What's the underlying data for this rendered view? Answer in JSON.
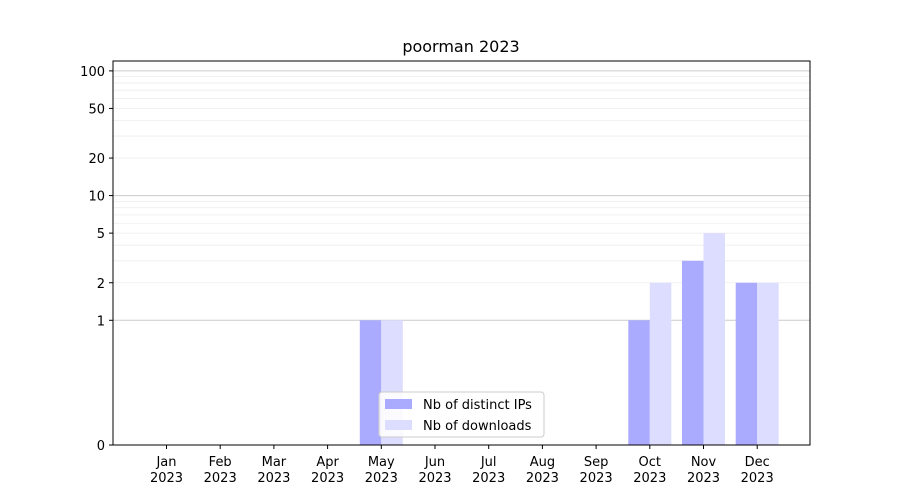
{
  "chart_data": {
    "type": "bar",
    "title": "poorman 2023",
    "xlabel": "",
    "ylabel": "",
    "categories": [
      [
        "Jan",
        "2023"
      ],
      [
        "Feb",
        "2023"
      ],
      [
        "Mar",
        "2023"
      ],
      [
        "Apr",
        "2023"
      ],
      [
        "May",
        "2023"
      ],
      [
        "Jun",
        "2023"
      ],
      [
        "Jul",
        "2023"
      ],
      [
        "Aug",
        "2023"
      ],
      [
        "Sep",
        "2023"
      ],
      [
        "Oct",
        "2023"
      ],
      [
        "Nov",
        "2023"
      ],
      [
        "Dec",
        "2023"
      ]
    ],
    "series": [
      {
        "name": "Nb of distinct IPs",
        "color": "#aaaaff",
        "values": [
          0,
          0,
          0,
          0,
          1,
          0,
          0,
          0,
          0,
          1,
          3,
          2
        ]
      },
      {
        "name": "Nb of downloads",
        "color": "#ddddff",
        "values": [
          0,
          0,
          0,
          0,
          1,
          0,
          0,
          0,
          0,
          2,
          5,
          2
        ]
      }
    ],
    "yscale": "symlog",
    "ylim": [
      0,
      120
    ],
    "yticks": [
      {
        "value": 0,
        "label": "0"
      },
      {
        "value": 1,
        "label": "1"
      },
      {
        "value": 2,
        "label": "2"
      },
      {
        "value": 5,
        "label": "5"
      },
      {
        "value": 10,
        "label": "10"
      },
      {
        "value": 20,
        "label": "20"
      },
      {
        "value": 50,
        "label": "50"
      },
      {
        "value": 100,
        "label": "100"
      }
    ],
    "grid": true,
    "legend": "bottom-center"
  }
}
